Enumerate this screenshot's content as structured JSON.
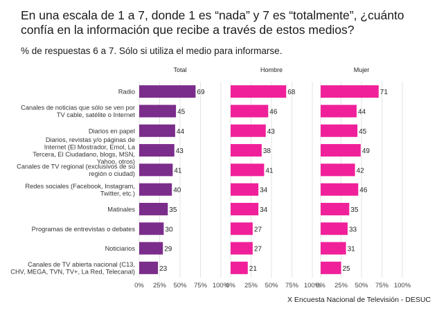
{
  "title": "En una escala de 1 a 7, donde 1 es “nada” y 7 es “totalmente”, ¿cuánto confía en la información que recibe a través de estos medios?",
  "subtitle": "% de respuestas 6 a 7. Sólo si utiliza el medio para informarse.",
  "caption": "X Encuesta Nacional de Televisión - DESUC",
  "chart_data": {
    "type": "bar",
    "orientation": "horizontal",
    "title": "En una escala de 1 a 7, donde 1 es “nada” y 7 es “totalmente”, ¿cuánto confía en la información que recibe a través de estos medios?",
    "subtitle": "% de respuestas 6 a 7. Sólo si utiliza el medio para informarse.",
    "xlabel": "",
    "ylabel": "",
    "xlim": [
      0,
      100
    ],
    "x_ticks": [
      "0%",
      "25%",
      "50%",
      "75%",
      "100%"
    ],
    "grid": true,
    "categories": [
      [
        "Radio"
      ],
      [
        "Canales de noticias que sólo se ven por",
        "TV cable, satélite o Internet"
      ],
      [
        "Diarios en papel"
      ],
      [
        "Diarios, revistas y/o páginas de",
        "Internet (El Mostrador, Emol, La",
        "Tercera, El Ciudadano, blogs, MSN,",
        "Yahoo, otros)"
      ],
      [
        "Canales de TV regional (exclusivos de su",
        "región o ciudad)"
      ],
      [
        "Redes sociales (Facebook, Instagram,",
        "Twitter, etc.)"
      ],
      [
        "Matinales"
      ],
      [
        "Programas de entrevistas o debates"
      ],
      [
        "Noticiarios"
      ],
      [
        "Canales de TV abierta nacional (C13,",
        "CHV, MEGA, TVN, TV+, La Red, Telecanal)"
      ]
    ],
    "series": [
      {
        "name": "Total",
        "color": "#7b2d8b",
        "values": [
          69,
          45,
          44,
          43,
          41,
          40,
          35,
          30,
          29,
          23
        ]
      },
      {
        "name": "Hombre",
        "color": "#f0209a",
        "values": [
          68,
          46,
          43,
          38,
          41,
          34,
          34,
          27,
          27,
          21
        ]
      },
      {
        "name": "Mujer",
        "color": "#f0209a",
        "values": [
          71,
          44,
          45,
          49,
          42,
          46,
          35,
          33,
          31,
          25
        ]
      }
    ]
  }
}
